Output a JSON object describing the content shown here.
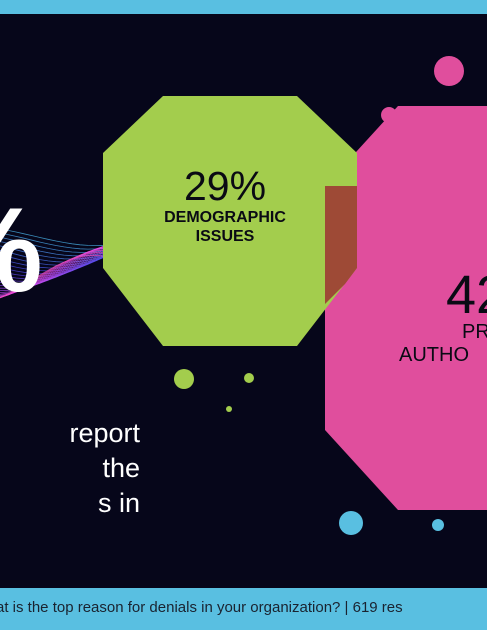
{
  "headline": {
    "big_percent": "%",
    "description": [
      "report",
      "the",
      "s in"
    ]
  },
  "stat_demographic": {
    "percent": "29%",
    "label_lines": [
      "DEMOGRAPHIC",
      "ISSUES"
    ],
    "color": "#a3cd4d"
  },
  "stat_prior_auth": {
    "percent": "42",
    "label_lines": [
      "PR",
      "AUTHO"
    ],
    "color": "#e04e9d"
  },
  "colors": {
    "background": "#06061a",
    "border": "#59bfe1",
    "dot_pink": "#e04e9d",
    "dot_green": "#a3cd4d",
    "dot_blue": "#59bfe1"
  },
  "footer": {
    "text": "at is the top reason for denials in your organization?  |  619 res"
  }
}
